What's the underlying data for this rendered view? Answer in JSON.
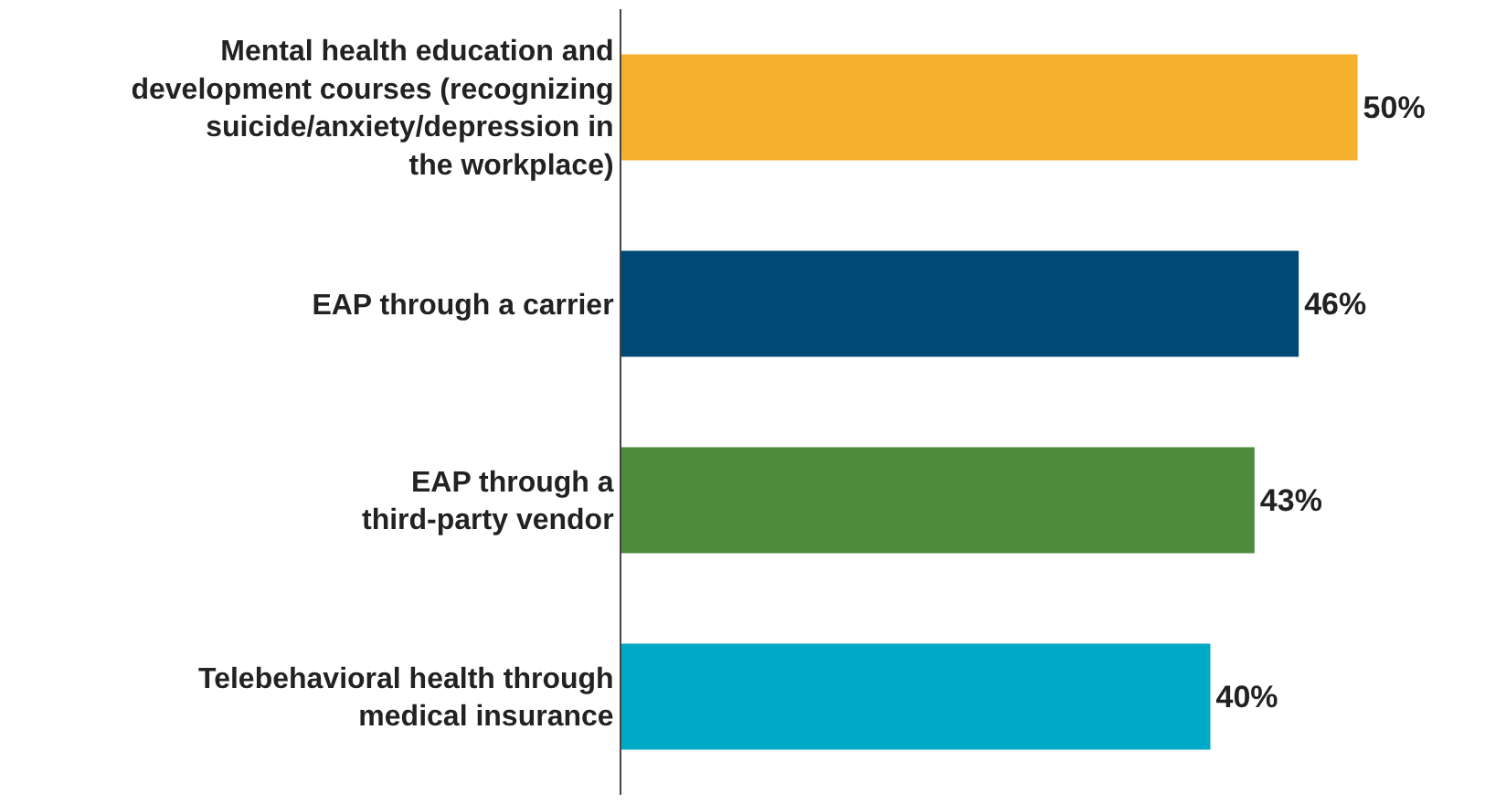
{
  "chart_data": {
    "type": "bar",
    "orientation": "horizontal",
    "categories": [
      "Mental health education and development courses (recognizing suicide/anxiety/depression in the workplace)",
      "EAP through a carrier",
      "EAP through a third-party vendor",
      "Telebehavioral health through medical insurance"
    ],
    "values": [
      50,
      46,
      43,
      40
    ],
    "value_labels": [
      "50%",
      "46%",
      "43%",
      "40%"
    ],
    "colors": [
      "#f5b02e",
      "#004876",
      "#4b8b3b",
      "#00a9c6"
    ]
  }
}
